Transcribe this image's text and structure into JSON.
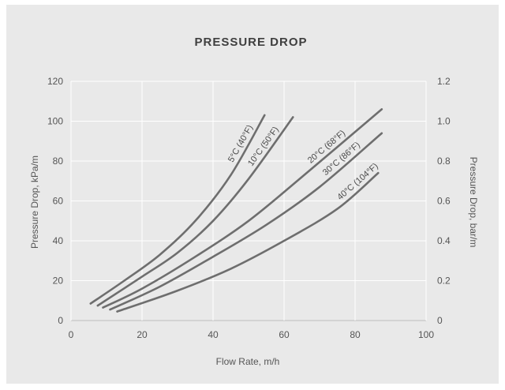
{
  "chart_data": {
    "type": "line",
    "title": "PRESSURE DROP",
    "xlabel": "Flow Rate, m/h",
    "ylabel": "Pressure Drop, kPa/m",
    "y2label": "Pressure Drop, bar/m",
    "xlim": [
      0,
      100
    ],
    "ylim": [
      0,
      120
    ],
    "y2lim": [
      0,
      1.2
    ],
    "x_ticks": [
      "0",
      "20",
      "40",
      "60",
      "80",
      "100"
    ],
    "y_ticks": [
      "0",
      "20",
      "40",
      "60",
      "80",
      "100",
      "120"
    ],
    "y2_ticks": [
      "0",
      "0.2",
      "0.4",
      "0.6",
      "0.8",
      "1.0",
      "1.2"
    ],
    "grid": true,
    "series": [
      {
        "name": "5°C (40°F)",
        "points": [
          [
            5.5,
            8.5
          ],
          [
            15,
            20
          ],
          [
            25,
            33
          ],
          [
            35,
            50
          ],
          [
            45,
            73
          ],
          [
            54.5,
            103
          ]
        ]
      },
      {
        "name": "10°C (50°F)",
        "points": [
          [
            7.5,
            7.5
          ],
          [
            20,
            22
          ],
          [
            30,
            34
          ],
          [
            40,
            50
          ],
          [
            50,
            71
          ],
          [
            62.5,
            102
          ]
        ]
      },
      {
        "name": "20°C (68°F)",
        "points": [
          [
            9,
            6.5
          ],
          [
            20,
            16
          ],
          [
            35,
            32
          ],
          [
            50,
            50
          ],
          [
            65,
            72
          ],
          [
            87.5,
            106
          ]
        ]
      },
      {
        "name": "30°C (86°F)",
        "points": [
          [
            11,
            5.5
          ],
          [
            25,
            17
          ],
          [
            40,
            32
          ],
          [
            55,
            48
          ],
          [
            70,
            67
          ],
          [
            87.5,
            94
          ]
        ]
      },
      {
        "name": "40°C (104°F)",
        "points": [
          [
            13,
            4.5
          ],
          [
            30,
            15
          ],
          [
            45,
            26
          ],
          [
            60,
            40
          ],
          [
            75,
            56
          ],
          [
            86.5,
            74
          ]
        ]
      }
    ]
  }
}
